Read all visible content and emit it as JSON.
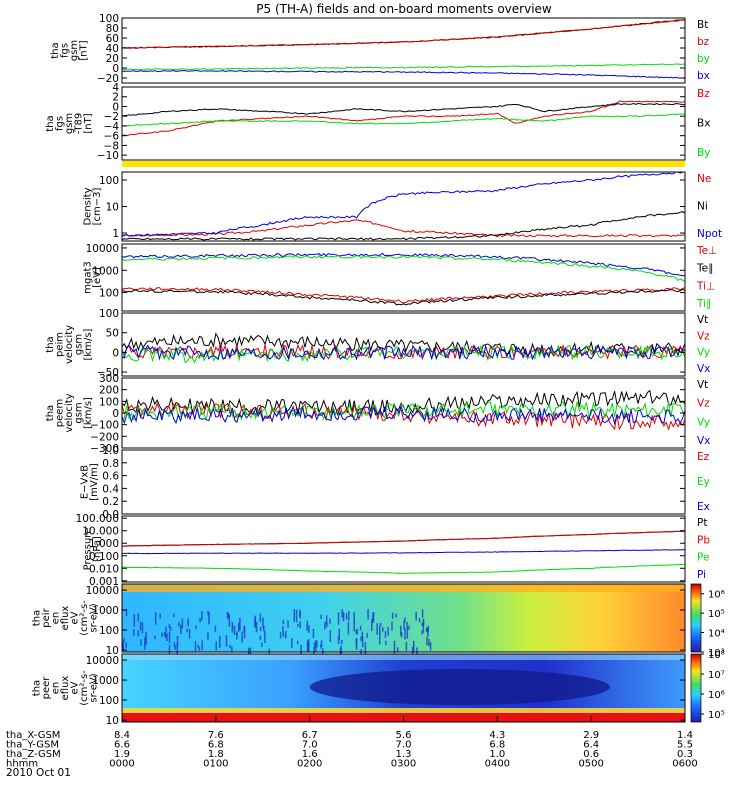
{
  "title": "P5 (TH-A) fields and on-board moments overview",
  "date_label": "2010 Oct 01",
  "colors": {
    "black": "#000000",
    "red": "#e00000",
    "green": "#00dd00",
    "blue": "#0000e0",
    "yellow": "#ffe400"
  },
  "chart_data": [
    {
      "id": "fgs-gsm",
      "type": "line",
      "ylabel_lines": [
        "tha",
        "fgs",
        "gsm",
        "[nT]"
      ],
      "ylim": [
        -30,
        100
      ],
      "yticks": [
        "100",
        "80",
        "60",
        "40",
        "20",
        "0",
        "−20"
      ],
      "ytick_values": [
        100,
        80,
        60,
        40,
        20,
        0,
        -20
      ],
      "legend_colors": [
        "black",
        "red",
        "green",
        "blue"
      ],
      "series": [
        {
          "name": "Bt",
          "color": "black",
          "x": [
            0,
            1,
            2,
            3,
            4,
            5,
            6
          ],
          "y": [
            40,
            43,
            47,
            52,
            62,
            78,
            97
          ]
        },
        {
          "name": "bz",
          "color": "red",
          "x": [
            0,
            1,
            2,
            3,
            4,
            5,
            6
          ],
          "y": [
            40,
            43,
            47,
            52,
            62,
            78,
            96
          ]
        },
        {
          "name": "by",
          "color": "green",
          "x": [
            0,
            1,
            2,
            3,
            4,
            5,
            6
          ],
          "y": [
            -3,
            -2,
            0,
            1,
            3,
            5,
            8
          ]
        },
        {
          "name": "bx",
          "color": "blue",
          "x": [
            0,
            1,
            2,
            3,
            4,
            5,
            6
          ],
          "y": [
            -6,
            -6,
            -7,
            -8,
            -10,
            -14,
            -20
          ]
        }
      ]
    },
    {
      "id": "fgs-gsm-detrended",
      "type": "line",
      "ylabel_lines": [
        "tha",
        "fgs",
        "gsm",
        "-T89",
        "[nT]"
      ],
      "ylim": [
        -11,
        4
      ],
      "yticks": [
        "4",
        "2",
        "0",
        "−2",
        "−4",
        "−6",
        "−8",
        "−10"
      ],
      "ytick_values": [
        4,
        2,
        0,
        -2,
        -4,
        -6,
        -8,
        -10
      ],
      "legend_colors": [
        "red",
        "black",
        "green"
      ],
      "series": [
        {
          "name": "Bz",
          "color": "red",
          "x": [
            0,
            0.5,
            1,
            1.5,
            2,
            2.5,
            3,
            3.5,
            4,
            4.2,
            4.5,
            5,
            5.3,
            6
          ],
          "y": [
            -6,
            -5,
            -3,
            -2.5,
            -2,
            -3,
            -2,
            -2,
            -1.5,
            -3.5,
            -2,
            -1,
            1,
            1
          ]
        },
        {
          "name": "Bx",
          "color": "black",
          "x": [
            0,
            0.5,
            1,
            1.5,
            2,
            2.5,
            3,
            3.5,
            4,
            4.2,
            4.5,
            5,
            5.3,
            6
          ],
          "y": [
            -2,
            -1,
            -0.5,
            -1,
            -1.5,
            -0.5,
            -1,
            -0.5,
            0,
            0.5,
            -1,
            0,
            0.5,
            0.5
          ]
        },
        {
          "name": "By",
          "color": "green",
          "x": [
            0,
            0.5,
            1,
            1.5,
            2,
            2.5,
            3,
            3.5,
            4,
            4.5,
            5,
            5.5,
            6
          ],
          "y": [
            -4,
            -3.5,
            -3,
            -3,
            -3,
            -3.5,
            -3.5,
            -3,
            -2.5,
            -3,
            -2,
            -2,
            -1.5
          ]
        }
      ]
    },
    {
      "id": "density",
      "type": "line",
      "ylabel_lines": [
        "Density",
        "[cm−3]"
      ],
      "scale": "log",
      "ylim": [
        0.5,
        200
      ],
      "yticks": [
        "100",
        "10",
        "1"
      ],
      "ytick_values": [
        100,
        10,
        1
      ],
      "legend_colors": [
        "red",
        "black",
        "blue"
      ],
      "series": [
        {
          "name": "Ne",
          "color": "red",
          "x": [
            0,
            1,
            1.5,
            2,
            2.5,
            3,
            3.5,
            4,
            5,
            6
          ],
          "y": [
            0.8,
            0.9,
            1.2,
            2,
            3,
            1.2,
            1,
            0.8,
            0.8,
            0.8
          ]
        },
        {
          "name": "Ni",
          "color": "black",
          "x": [
            0,
            1,
            2,
            3,
            4,
            5,
            6
          ],
          "y": [
            0.6,
            0.6,
            0.6,
            0.6,
            0.8,
            2,
            6
          ]
        },
        {
          "name": "Npot",
          "color": "blue",
          "x": [
            0,
            1,
            1.5,
            2,
            2.5,
            3,
            4,
            5,
            6
          ],
          "y": [
            0.8,
            1,
            2,
            4,
            4,
            30,
            40,
            100,
            200
          ]
        }
      ]
    },
    {
      "id": "temperature",
      "type": "line",
      "ylabel_lines": [
        "mgat3",
        "[eV]"
      ],
      "scale": "log",
      "ylim": [
        15,
        15000
      ],
      "yticks": [
        "10000",
        "1000",
        "100"
      ],
      "ytick_values": [
        10000,
        1000,
        100
      ],
      "legend_colors": [
        "red",
        "black",
        "red",
        "green"
      ],
      "series": [
        {
          "name": "Te⊥",
          "color": "red",
          "x": [
            0,
            1,
            2,
            3,
            4,
            5,
            6
          ],
          "y": [
            150,
            140,
            80,
            40,
            70,
            110,
            150
          ]
        },
        {
          "name": "Te∥",
          "color": "black",
          "x": [
            0,
            1,
            2,
            3,
            4,
            5,
            6
          ],
          "y": [
            120,
            110,
            60,
            30,
            60,
            90,
            130
          ]
        },
        {
          "name": "Ti⊥",
          "color": "blue",
          "x": [
            0,
            1,
            2,
            3,
            4,
            5,
            6
          ],
          "y": [
            4000,
            4500,
            5000,
            5000,
            4000,
            2000,
            500
          ]
        },
        {
          "name": "Ti∥",
          "color": "green",
          "x": [
            0,
            1,
            2,
            3,
            4,
            5,
            6
          ],
          "y": [
            3000,
            3500,
            4000,
            4000,
            3000,
            1500,
            300
          ]
        }
      ]
    },
    {
      "id": "peim-velocity",
      "type": "line",
      "ylabel_lines": [
        "tha",
        "peim",
        "velocity",
        "gsm",
        "[km/s]"
      ],
      "ylim": [
        -60,
        100
      ],
      "yticks": [
        "100",
        "50",
        "0",
        "−50"
      ],
      "ytick_values": [
        100,
        50,
        0,
        -50
      ],
      "legend_colors": [
        "black",
        "red",
        "green",
        "blue"
      ],
      "series": [
        {
          "name": "Vt",
          "color": "black",
          "x": [
            0,
            1,
            2,
            3,
            4,
            5,
            6
          ],
          "y": [
            20,
            30,
            25,
            15,
            10,
            8,
            8
          ]
        },
        {
          "name": "Vz",
          "color": "red",
          "x": [
            0,
            1,
            2,
            3,
            4,
            5,
            6
          ],
          "y": [
            0,
            5,
            0,
            0,
            0,
            0,
            0
          ]
        },
        {
          "name": "Vy",
          "color": "green",
          "x": [
            0,
            1,
            2,
            3,
            4,
            5,
            6
          ],
          "y": [
            -5,
            -10,
            -5,
            0,
            0,
            0,
            0
          ]
        },
        {
          "name": "Vx",
          "color": "blue",
          "x": [
            0,
            1,
            2,
            3,
            4,
            5,
            6
          ],
          "y": [
            0,
            0,
            0,
            0,
            0,
            0,
            0
          ]
        }
      ]
    },
    {
      "id": "peem-velocity",
      "type": "line",
      "ylabel_lines": [
        "tha",
        "peem",
        "velocity",
        "gsm",
        "[km/s]"
      ],
      "ylim": [
        -300,
        300
      ],
      "yticks": [
        "300",
        "200",
        "100",
        "0",
        "−100",
        "−200",
        "−300"
      ],
      "ytick_values": [
        300,
        200,
        100,
        0,
        -100,
        -200,
        -300
      ],
      "legend_colors": [
        "black",
        "red",
        "green",
        "blue"
      ],
      "series": [
        {
          "name": "Vt",
          "color": "black",
          "x": [
            0,
            1,
            2,
            3,
            4,
            5,
            6
          ],
          "y": [
            70,
            60,
            50,
            50,
            100,
            120,
            130
          ]
        },
        {
          "name": "Vz",
          "color": "red",
          "x": [
            0,
            1,
            2,
            3,
            4,
            5,
            6
          ],
          "y": [
            20,
            20,
            10,
            -20,
            -50,
            -70,
            -80
          ]
        },
        {
          "name": "Vy",
          "color": "green",
          "x": [
            0,
            1,
            2,
            3,
            4,
            5,
            6
          ],
          "y": [
            0,
            10,
            10,
            20,
            30,
            30,
            30
          ]
        },
        {
          "name": "Vx",
          "color": "blue",
          "x": [
            0,
            1,
            2,
            3,
            4,
            5,
            6
          ],
          "y": [
            -20,
            -20,
            -10,
            -10,
            -20,
            -30,
            -30
          ]
        }
      ]
    },
    {
      "id": "efield",
      "type": "line",
      "ylabel_lines": [
        "E−VxB",
        "[mV/m]"
      ],
      "ylim": [
        0,
        1
      ],
      "yticks": [
        "1.0",
        "0.8",
        "0.6",
        "0.4",
        "0.2",
        "0.0"
      ],
      "ytick_values": [
        1,
        0.8,
        0.6,
        0.4,
        0.2,
        0
      ],
      "legend_colors": [
        "red",
        "green",
        "blue"
      ],
      "series": [
        {
          "name": "Ez",
          "color": "red",
          "x": [],
          "y": []
        },
        {
          "name": "Ey",
          "color": "green",
          "x": [],
          "y": []
        },
        {
          "name": "Ex",
          "color": "blue",
          "x": [],
          "y": []
        }
      ]
    },
    {
      "id": "pressure",
      "type": "line",
      "ylabel_lines": [
        "Pressure",
        "[nPa]"
      ],
      "scale": "log",
      "ylim": [
        0.0008,
        150
      ],
      "yticks": [
        "100.000",
        "10.000",
        "1.000",
        "0.100",
        "0.010",
        "0.001"
      ],
      "ytick_values": [
        100,
        10,
        1,
        0.1,
        0.01,
        0.001
      ],
      "legend_colors": [
        "black",
        "red",
        "green",
        "blue"
      ],
      "series": [
        {
          "name": "Pt",
          "color": "black",
          "x": [
            0,
            1,
            2,
            3,
            4,
            5,
            6
          ],
          "y": [
            0.6,
            0.8,
            1,
            1.5,
            2.5,
            5,
            9
          ]
        },
        {
          "name": "Pb",
          "color": "red",
          "x": [
            0,
            1,
            2,
            3,
            4,
            5,
            6
          ],
          "y": [
            0.6,
            0.8,
            1,
            1.5,
            2.5,
            5,
            9
          ]
        },
        {
          "name": "Pe",
          "color": "green",
          "x": [
            0,
            1,
            2,
            3,
            4,
            5,
            6
          ],
          "y": [
            0.012,
            0.01,
            0.006,
            0.004,
            0.005,
            0.01,
            0.02
          ]
        },
        {
          "name": "Pi",
          "color": "blue",
          "x": [
            0,
            1,
            2,
            3,
            4,
            5,
            6
          ],
          "y": [
            0.15,
            0.16,
            0.16,
            0.17,
            0.2,
            0.25,
            0.3
          ]
        }
      ]
    },
    {
      "id": "peir-spectrogram",
      "type": "heatmap",
      "ylabel_lines": [
        "tha",
        "peir",
        "en",
        "eflux",
        "eV",
        "(cm²-s-",
        "sr-eV)"
      ],
      "scale": "log",
      "ylim": [
        8,
        20000
      ],
      "yticks": [
        "10000",
        "1000",
        "100",
        "10"
      ],
      "ytick_values": [
        10000,
        1000,
        100,
        10
      ],
      "colorbar_ticks": [
        "10⁶",
        "10⁵",
        "10⁴",
        "10³"
      ],
      "colorbar_exponents": [
        6,
        5,
        4,
        3
      ],
      "colorbar_range": [
        3,
        6.5
      ]
    },
    {
      "id": "peer-spectrogram",
      "type": "heatmap",
      "ylabel_lines": [
        "tha",
        "peer",
        "en",
        "eflux",
        "eV",
        "(cm²-s-",
        "sr-eV)"
      ],
      "scale": "log",
      "ylim": [
        8,
        20000
      ],
      "yticks": [
        "10000",
        "1000",
        "100",
        "10"
      ],
      "ytick_values": [
        10000,
        1000,
        100,
        10
      ],
      "colorbar_ticks": [
        "10⁸",
        "10⁷",
        "10⁶",
        "10⁵"
      ],
      "colorbar_exponents": [
        8,
        7,
        6,
        5
      ],
      "colorbar_range": [
        4.6,
        8
      ]
    }
  ],
  "xaxis": {
    "range": [
      0,
      6
    ],
    "rows": [
      {
        "label": "tha_X-GSM",
        "values": [
          "8.4",
          "7.6",
          "6.7",
          "5.6",
          "4.3",
          "2.9",
          "1.4"
        ]
      },
      {
        "label": "tha_Y-GSM",
        "values": [
          "6.6",
          "6.8",
          "7.0",
          "7.0",
          "6.8",
          "6.4",
          "5.5"
        ]
      },
      {
        "label": "tha_Z-GSM",
        "values": [
          "1.9",
          "1.8",
          "1.6",
          "1.3",
          "1.0",
          "0.6",
          "0.3"
        ]
      },
      {
        "label": "hhmm",
        "values": [
          "0000",
          "0100",
          "0200",
          "0300",
          "0400",
          "0500",
          "0600"
        ]
      }
    ]
  }
}
